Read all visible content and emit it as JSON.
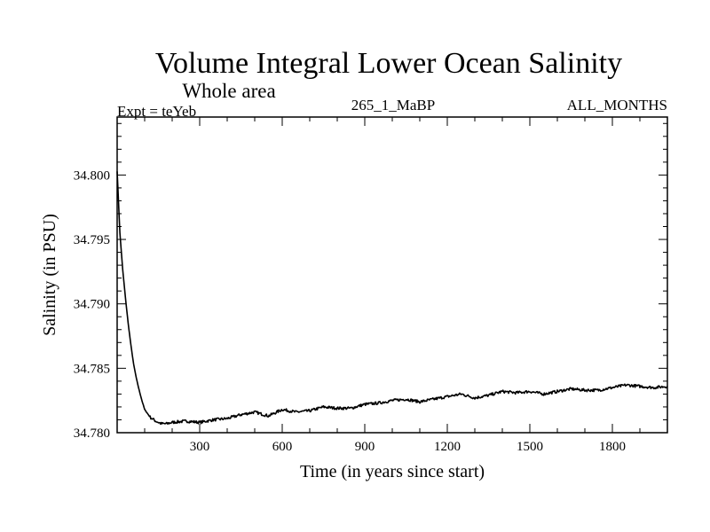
{
  "chart_data": {
    "type": "line",
    "title": "Volume Integral Lower Ocean Salinity",
    "subtitle": "Whole area",
    "header_left": "Expt = teYeb",
    "header_center": "265_1_MaBP",
    "header_right": "ALL_MONTHS",
    "xlabel": "Time (in years since start)",
    "ylabel": "Salinity (in PSU)",
    "xlim": [
      0,
      2000
    ],
    "ylim": [
      34.78,
      34.8045
    ],
    "xticks": [
      300,
      600,
      900,
      1200,
      1500,
      1800
    ],
    "yticks": [
      "34.780",
      "34.785",
      "34.790",
      "34.795",
      "34.800"
    ],
    "series": [
      {
        "name": "Salinity",
        "x": [
          0,
          10,
          20,
          30,
          40,
          50,
          60,
          70,
          80,
          90,
          100,
          120,
          140,
          160,
          180,
          200,
          250,
          300,
          350,
          400,
          450,
          500,
          550,
          600,
          650,
          700,
          750,
          800,
          850,
          900,
          950,
          1000,
          1050,
          1100,
          1150,
          1200,
          1250,
          1300,
          1350,
          1400,
          1450,
          1500,
          1550,
          1600,
          1650,
          1700,
          1750,
          1800,
          1850,
          1900,
          1950,
          2000
        ],
        "y": [
          34.8003,
          34.7955,
          34.7927,
          34.7905,
          34.7885,
          34.7868,
          34.7853,
          34.7842,
          34.7833,
          34.7825,
          34.7818,
          34.7812,
          34.7809,
          34.7807,
          34.7807,
          34.7808,
          34.7809,
          34.7808,
          34.781,
          34.7811,
          34.7814,
          34.7816,
          34.7813,
          34.7818,
          34.7816,
          34.7817,
          34.782,
          34.7819,
          34.7819,
          34.7822,
          34.7823,
          34.7825,
          34.7826,
          34.7824,
          34.7826,
          34.7828,
          34.783,
          34.7827,
          34.7829,
          34.7832,
          34.7831,
          34.7832,
          34.783,
          34.7832,
          34.7834,
          34.7833,
          34.7833,
          34.7835,
          34.7837,
          34.7836,
          34.7835,
          34.7836
        ]
      }
    ]
  }
}
